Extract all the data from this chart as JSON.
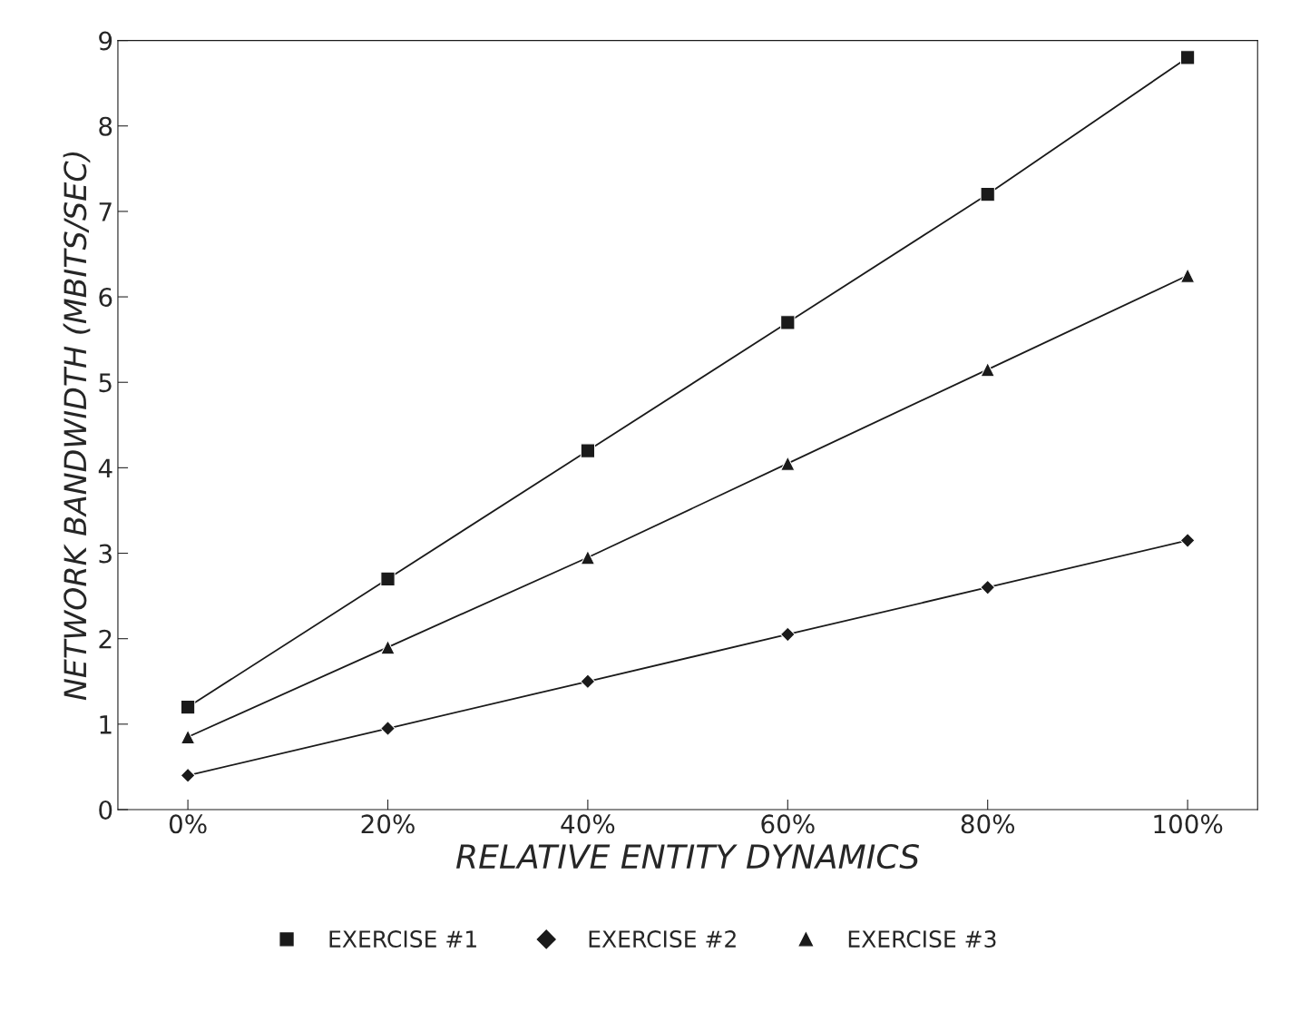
{
  "chart_data": {
    "type": "line",
    "xlabel": "RELATIVE ENTITY DYNAMICS",
    "ylabel": "NETWORK BANDWIDTH (MBITS/SEC)",
    "categories": [
      "0%",
      "20%",
      "40%",
      "60%",
      "80%",
      "100%"
    ],
    "ylim": [
      0,
      9
    ],
    "yticks": [
      0,
      1,
      2,
      3,
      4,
      5,
      6,
      7,
      8,
      9
    ],
    "grid": false,
    "legend": "bottom",
    "line_style": "solid",
    "series": [
      {
        "name": "EXERCISE #1",
        "color": "#1a1a1a",
        "marker": "square",
        "values": [
          1.2,
          2.7,
          4.2,
          5.7,
          7.2,
          8.8
        ]
      },
      {
        "name": "EXERCISE #2",
        "color": "#1a1a1a",
        "marker": "diamond",
        "values": [
          0.4,
          0.95,
          1.5,
          2.05,
          2.6,
          3.15
        ]
      },
      {
        "name": "EXERCISE #3",
        "color": "#1a1a1a",
        "marker": "triangle",
        "values": [
          0.85,
          1.9,
          2.95,
          4.05,
          5.15,
          6.25
        ]
      }
    ]
  }
}
